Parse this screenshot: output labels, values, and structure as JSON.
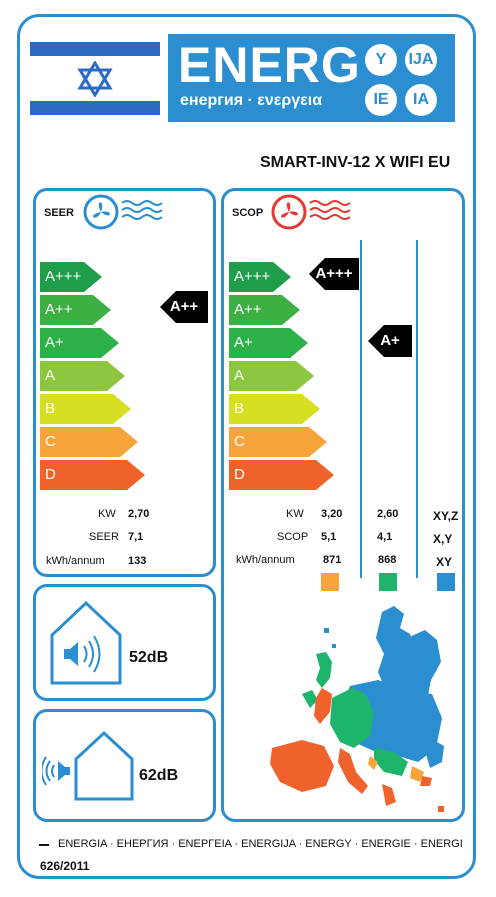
{
  "header": {
    "title": "ENERG",
    "subtitle": "енергия · ενεργεια",
    "suffixes": [
      "Y",
      "IJA",
      "IE",
      "IA"
    ]
  },
  "model": "SMART-INV-12 X WIFI EU",
  "colors": {
    "frame": "#2a8ed0",
    "class_A+++": "#1e9e4a",
    "class_A++": "#3cb043",
    "class_A+": "#2db24a",
    "class_A": "#8cc63f",
    "class_B": "#d7df23",
    "class_C": "#f7a43b",
    "class_D": "#f0622b",
    "zone_warm": "#f7a43b",
    "zone_average": "#1fb46b",
    "zone_cold": "#2a8ed0"
  },
  "classes": [
    "A+++",
    "A++",
    "A+",
    "A",
    "B",
    "C",
    "D"
  ],
  "seer": {
    "title": "SEER",
    "icon": "cooling-fan-icon",
    "rating": "A++",
    "rows": [
      {
        "label": "KW",
        "value": "2,70"
      },
      {
        "label": "SEER",
        "value": "7,1"
      },
      {
        "label": "kWh/annum",
        "value": "133"
      }
    ]
  },
  "scop": {
    "title": "SCOP",
    "icon": "heating-fan-icon",
    "ratings": {
      "zone1": "A+++",
      "zone2": "A+"
    },
    "rows": [
      {
        "label": "KW",
        "zone1": "3,20",
        "zone2": "2,60",
        "zone3": "XY,Z"
      },
      {
        "label": "SCOP",
        "zone1": "5,1",
        "zone2": "4,1",
        "zone3": "X,Y"
      },
      {
        "label": "kWh/annum",
        "zone1": "871",
        "zone2": "868",
        "zone3": "XY"
      }
    ]
  },
  "noise": {
    "indoor": "52dB",
    "outdoor": "62dB"
  },
  "footer": {
    "languages": "ENERGIA · ЕНЕРГИЯ · ΕΝΕΡΓΕΙΑ · ENERGIJA · ENERGY · ENERGIE · ENERGI",
    "regulation": "626/2011"
  }
}
